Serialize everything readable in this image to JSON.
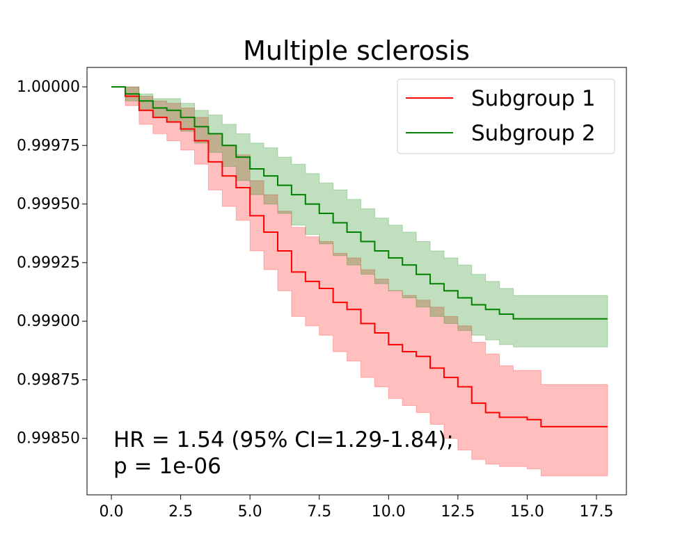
{
  "chart_data": {
    "type": "step",
    "title": "Multiple sclerosis",
    "annotation": [
      "HR = 1.54 (95% CI=1.29-1.84);",
      "p = 1e-06"
    ],
    "legend": "upper right",
    "x": [
      0,
      0.5,
      1,
      1.5,
      2,
      2.5,
      3,
      3.5,
      4,
      4.5,
      5,
      5.5,
      6,
      6.5,
      7,
      7.5,
      8,
      8.5,
      9,
      9.5,
      10,
      10.5,
      11,
      11.5,
      12,
      12.5,
      13,
      13.5,
      14,
      14.5,
      15,
      15.5,
      16,
      16.5,
      17,
      17.9
    ],
    "series": [
      {
        "name": "Subgroup 1",
        "color": "#ff0000",
        "values": [
          1.0,
          0.99996,
          0.9999,
          0.99987,
          0.99985,
          0.99982,
          0.99977,
          0.99968,
          0.99962,
          0.99957,
          0.99945,
          0.99938,
          0.9993,
          0.99921,
          0.99917,
          0.99914,
          0.99908,
          0.99905,
          0.99899,
          0.99895,
          0.9989,
          0.99887,
          0.99885,
          0.9988,
          0.99876,
          0.99872,
          0.99865,
          0.99861,
          0.99859,
          0.99859,
          0.99858,
          0.99855,
          0.99855,
          0.99855,
          0.99855,
          0.99855
        ],
        "upper": [
          1.0,
          1.0,
          0.99996,
          0.99994,
          0.99993,
          0.99991,
          0.99987,
          0.9998,
          0.99975,
          0.99971,
          0.9996,
          0.99954,
          0.99947,
          0.9994,
          0.99936,
          0.99934,
          0.99929,
          0.99927,
          0.99922,
          0.99918,
          0.99913,
          0.99911,
          0.99909,
          0.99906,
          0.99902,
          0.99898,
          0.99891,
          0.99886,
          0.99881,
          0.99879,
          0.99879,
          0.99873,
          0.99873,
          0.99873,
          0.99873,
          0.99873
        ],
        "lower": [
          1.0,
          0.99992,
          0.99984,
          0.9998,
          0.99977,
          0.99973,
          0.99967,
          0.99956,
          0.99949,
          0.99943,
          0.9993,
          0.99922,
          0.99913,
          0.99902,
          0.99898,
          0.99894,
          0.99887,
          0.99883,
          0.99876,
          0.99872,
          0.99867,
          0.99864,
          0.99861,
          0.99856,
          0.9985,
          0.99845,
          0.99841,
          0.99839,
          0.99838,
          0.99838,
          0.99837,
          0.99834,
          0.99834,
          0.99834,
          0.99834,
          0.99834
        ]
      },
      {
        "name": "Subgroup 2",
        "color": "#008000",
        "values": [
          1.0,
          0.99997,
          0.99994,
          0.99991,
          0.9999,
          0.99987,
          0.99983,
          0.9998,
          0.99975,
          0.9997,
          0.99965,
          0.99962,
          0.99958,
          0.99954,
          0.9995,
          0.99946,
          0.99942,
          0.99938,
          0.99934,
          0.9993,
          0.99927,
          0.99924,
          0.9992,
          0.99916,
          0.99913,
          0.9991,
          0.99907,
          0.99905,
          0.99903,
          0.99901,
          0.99901,
          0.99901,
          0.99901,
          0.99901,
          0.99901,
          0.99901
        ],
        "upper": [
          1.0,
          1.0,
          0.99997,
          0.99995,
          0.99995,
          0.99993,
          0.9999,
          0.99988,
          0.99984,
          0.9998,
          0.99976,
          0.99974,
          0.9997,
          0.99967,
          0.99963,
          0.99959,
          0.99956,
          0.99952,
          0.99948,
          0.99944,
          0.99941,
          0.99938,
          0.99934,
          0.9993,
          0.99927,
          0.99924,
          0.9992,
          0.99917,
          0.99914,
          0.99911,
          0.99911,
          0.99911,
          0.99911,
          0.99911,
          0.99911,
          0.99911
        ],
        "lower": [
          1.0,
          0.99994,
          0.9999,
          0.99987,
          0.99985,
          0.99981,
          0.99976,
          0.99972,
          0.99966,
          0.9996,
          0.99954,
          0.9995,
          0.99946,
          0.99941,
          0.99937,
          0.99933,
          0.99928,
          0.99924,
          0.9992,
          0.99916,
          0.99913,
          0.9991,
          0.99906,
          0.99902,
          0.99899,
          0.99896,
          0.99894,
          0.99892,
          0.9989,
          0.99889,
          0.99889,
          0.99889,
          0.99889,
          0.99889,
          0.99889,
          0.99889
        ]
      }
    ],
    "xlim": [
      -0.88,
      18.58
    ],
    "ylim": [
      0.998259,
      1.000083
    ],
    "xticks": [
      {
        "value": 0,
        "label": "0.0"
      },
      2.5,
      {
        "value": 5,
        "label": "5.0"
      },
      7.5,
      {
        "value": 10,
        "label": "10.0"
      },
      12.5,
      {
        "value": 15,
        "label": "15.0"
      },
      17.5
    ],
    "yticks": [
      {
        "value": 0.9985,
        "label": "0.99850"
      },
      {
        "value": 0.99875,
        "label": "0.99875"
      },
      {
        "value": 0.999,
        "label": "0.99900"
      },
      {
        "value": 0.99925,
        "label": "0.99925"
      },
      {
        "value": 0.9995,
        "label": "0.99950"
      },
      {
        "value": 0.99975,
        "label": "0.99975"
      },
      {
        "value": 1,
        "label": "1.00000"
      }
    ]
  }
}
